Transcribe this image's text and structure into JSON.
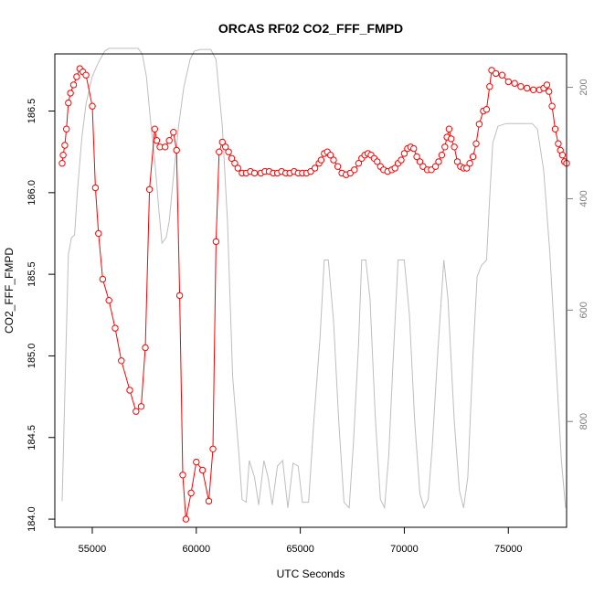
{
  "chart_data": {
    "type": "scatter",
    "title": "ORCAS RF02 CO2_FFF_FMPD",
    "xlabel": "UTC Seconds",
    "ylabel": "CO2_FFF_FMPD",
    "xlim": [
      53200,
      77800
    ],
    "ylim": [
      183.95,
      186.85
    ],
    "y2lim": [
      990,
      140
    ],
    "x_ticks": [
      55000,
      60000,
      65000,
      70000,
      75000
    ],
    "y_ticks": [
      184.0,
      184.5,
      185.0,
      185.5,
      186.0,
      186.5
    ],
    "y_tick_labels": [
      "184.0",
      "184.5",
      "185.0",
      "185.5",
      "186.0",
      "186.5"
    ],
    "y2_ticks": [
      200,
      400,
      600,
      800
    ],
    "series": [
      {
        "color": "#ff0000",
        "marker": "open-circle",
        "line": true,
        "points": [
          [
            53550,
            186.18
          ],
          [
            53600,
            186.23
          ],
          [
            53680,
            186.29
          ],
          [
            53760,
            186.39
          ],
          [
            53850,
            186.55
          ],
          [
            53950,
            186.61
          ],
          [
            54100,
            186.66
          ],
          [
            54250,
            186.71
          ],
          [
            54400,
            186.76
          ],
          [
            54550,
            186.74
          ],
          [
            54700,
            186.72
          ],
          [
            55000,
            186.53
          ],
          [
            55150,
            186.03
          ],
          [
            55300,
            185.75
          ],
          [
            55500,
            185.47
          ],
          [
            55800,
            185.34
          ],
          [
            56100,
            185.17
          ],
          [
            56400,
            184.97
          ],
          [
            56800,
            184.79
          ],
          [
            57100,
            184.66
          ],
          [
            57350,
            184.69
          ],
          [
            57550,
            185.05
          ],
          [
            57750,
            186.02
          ],
          [
            58000,
            186.39
          ],
          [
            58100,
            186.32
          ],
          [
            58250,
            186.28
          ],
          [
            58500,
            186.28
          ],
          [
            58700,
            186.32
          ],
          [
            58900,
            186.37
          ],
          [
            59050,
            186.26
          ],
          [
            59200,
            185.37
          ],
          [
            59350,
            184.27
          ],
          [
            59500,
            184.0
          ],
          [
            59750,
            184.16
          ],
          [
            60000,
            184.35
          ],
          [
            60300,
            184.3
          ],
          [
            60600,
            184.11
          ],
          [
            60800,
            184.43
          ],
          [
            60950,
            185.7
          ],
          [
            61100,
            186.25
          ],
          [
            61250,
            186.31
          ],
          [
            61400,
            186.28
          ],
          [
            61550,
            186.25
          ],
          [
            61700,
            186.21
          ],
          [
            61850,
            186.18
          ],
          [
            62000,
            186.15
          ],
          [
            62200,
            186.12
          ],
          [
            62400,
            186.12
          ],
          [
            62600,
            186.13
          ],
          [
            62800,
            186.12
          ],
          [
            63100,
            186.12
          ],
          [
            63300,
            186.13
          ],
          [
            63500,
            186.13
          ],
          [
            63700,
            186.12
          ],
          [
            63900,
            186.12
          ],
          [
            64100,
            186.13
          ],
          [
            64300,
            186.12
          ],
          [
            64500,
            186.12
          ],
          [
            64700,
            186.13
          ],
          [
            64900,
            186.12
          ],
          [
            65100,
            186.12
          ],
          [
            65300,
            186.12
          ],
          [
            65500,
            186.13
          ],
          [
            65700,
            186.15
          ],
          [
            65900,
            186.18
          ],
          [
            66000,
            186.2
          ],
          [
            66150,
            186.24
          ],
          [
            66300,
            186.25
          ],
          [
            66450,
            186.23
          ],
          [
            66600,
            186.2
          ],
          [
            66800,
            186.16
          ],
          [
            67000,
            186.12
          ],
          [
            67200,
            186.11
          ],
          [
            67400,
            186.12
          ],
          [
            67600,
            186.14
          ],
          [
            67800,
            186.18
          ],
          [
            67950,
            186.21
          ],
          [
            68100,
            186.23
          ],
          [
            68250,
            186.24
          ],
          [
            68400,
            186.23
          ],
          [
            68550,
            186.21
          ],
          [
            68700,
            186.19
          ],
          [
            68850,
            186.16
          ],
          [
            69000,
            186.14
          ],
          [
            69200,
            186.13
          ],
          [
            69400,
            186.14
          ],
          [
            69550,
            186.15
          ],
          [
            69700,
            186.18
          ],
          [
            69850,
            186.2
          ],
          [
            70000,
            186.24
          ],
          [
            70150,
            186.27
          ],
          [
            70300,
            186.28
          ],
          [
            70450,
            186.27
          ],
          [
            70600,
            186.22
          ],
          [
            70750,
            186.19
          ],
          [
            70900,
            186.16
          ],
          [
            71100,
            186.14
          ],
          [
            71300,
            186.14
          ],
          [
            71500,
            186.16
          ],
          [
            71650,
            186.19
          ],
          [
            71800,
            186.23
          ],
          [
            71950,
            186.28
          ],
          [
            72050,
            186.34
          ],
          [
            72150,
            186.39
          ],
          [
            72250,
            186.33
          ],
          [
            72400,
            186.28
          ],
          [
            72550,
            186.19
          ],
          [
            72700,
            186.16
          ],
          [
            72850,
            186.15
          ],
          [
            73000,
            186.15
          ],
          [
            73150,
            186.18
          ],
          [
            73300,
            186.22
          ],
          [
            73450,
            186.3
          ],
          [
            73600,
            186.42
          ],
          [
            73800,
            186.5
          ],
          [
            73950,
            186.51
          ],
          [
            74100,
            186.65
          ],
          [
            74200,
            186.75
          ],
          [
            74400,
            186.73
          ],
          [
            74700,
            186.72
          ],
          [
            75000,
            186.68
          ],
          [
            75300,
            186.67
          ],
          [
            75600,
            186.65
          ],
          [
            75900,
            186.64
          ],
          [
            76200,
            186.63
          ],
          [
            76500,
            186.63
          ],
          [
            76700,
            186.64
          ],
          [
            76850,
            186.66
          ],
          [
            76950,
            186.62
          ],
          [
            77100,
            186.53
          ],
          [
            77250,
            186.39
          ],
          [
            77400,
            186.3
          ],
          [
            77500,
            186.26
          ],
          [
            77600,
            186.23
          ],
          [
            77700,
            186.19
          ],
          [
            77800,
            186.18
          ]
        ]
      },
      {
        "color": "#bebebe",
        "axis": "right",
        "marker": "none",
        "line": true,
        "points": [
          [
            53550,
            943
          ],
          [
            53700,
            720
          ],
          [
            53850,
            500
          ],
          [
            54000,
            470
          ],
          [
            54150,
            465
          ],
          [
            54300,
            380
          ],
          [
            54500,
            290
          ],
          [
            54700,
            230
          ],
          [
            55000,
            180
          ],
          [
            55300,
            155
          ],
          [
            55600,
            135
          ],
          [
            55800,
            130
          ],
          [
            56500,
            130
          ],
          [
            57200,
            130
          ],
          [
            57400,
            140
          ],
          [
            57600,
            180
          ],
          [
            57800,
            260
          ],
          [
            58000,
            330
          ],
          [
            58200,
            420
          ],
          [
            58350,
            480
          ],
          [
            58550,
            470
          ],
          [
            58700,
            440
          ],
          [
            58900,
            360
          ],
          [
            59150,
            270
          ],
          [
            59400,
            200
          ],
          [
            59700,
            150
          ],
          [
            59900,
            135
          ],
          [
            60200,
            132
          ],
          [
            60700,
            132
          ],
          [
            60950,
            150
          ],
          [
            61100,
            210
          ],
          [
            61250,
            270
          ],
          [
            61500,
            440
          ],
          [
            61750,
            720
          ],
          [
            62050,
            860
          ],
          [
            62200,
            940
          ],
          [
            62400,
            945
          ],
          [
            62550,
            870
          ],
          [
            62800,
            900
          ],
          [
            63000,
            950
          ],
          [
            63250,
            870
          ],
          [
            63450,
            900
          ],
          [
            63650,
            950
          ],
          [
            63900,
            880
          ],
          [
            64150,
            870
          ],
          [
            64400,
            955
          ],
          [
            64650,
            875
          ],
          [
            64900,
            880
          ],
          [
            65100,
            945
          ],
          [
            65400,
            945
          ],
          [
            65650,
            800
          ],
          [
            65950,
            650
          ],
          [
            66150,
            510
          ],
          [
            66350,
            510
          ],
          [
            66600,
            620
          ],
          [
            66850,
            800
          ],
          [
            67100,
            945
          ],
          [
            67350,
            955
          ],
          [
            67550,
            840
          ],
          [
            67800,
            660
          ],
          [
            67950,
            510
          ],
          [
            68150,
            510
          ],
          [
            68350,
            580
          ],
          [
            68600,
            790
          ],
          [
            68850,
            940
          ],
          [
            69050,
            955
          ],
          [
            69250,
            860
          ],
          [
            69450,
            700
          ],
          [
            69700,
            510
          ],
          [
            70000,
            510
          ],
          [
            70250,
            610
          ],
          [
            70500,
            800
          ],
          [
            70750,
            930
          ],
          [
            70950,
            955
          ],
          [
            71150,
            940
          ],
          [
            71350,
            840
          ],
          [
            71600,
            680
          ],
          [
            71900,
            510
          ],
          [
            72100,
            580
          ],
          [
            72400,
            800
          ],
          [
            72650,
            925
          ],
          [
            72850,
            955
          ],
          [
            73050,
            900
          ],
          [
            73300,
            680
          ],
          [
            73500,
            540
          ],
          [
            73700,
            520
          ],
          [
            73950,
            510
          ],
          [
            74100,
            400
          ],
          [
            74250,
            300
          ],
          [
            74500,
            270
          ],
          [
            74900,
            265
          ],
          [
            75500,
            265
          ],
          [
            76150,
            265
          ],
          [
            76400,
            275
          ],
          [
            76700,
            350
          ],
          [
            77000,
            500
          ],
          [
            77300,
            700
          ],
          [
            77550,
            870
          ],
          [
            77750,
            955
          ]
        ]
      }
    ],
    "grid": false,
    "legend": "none"
  }
}
